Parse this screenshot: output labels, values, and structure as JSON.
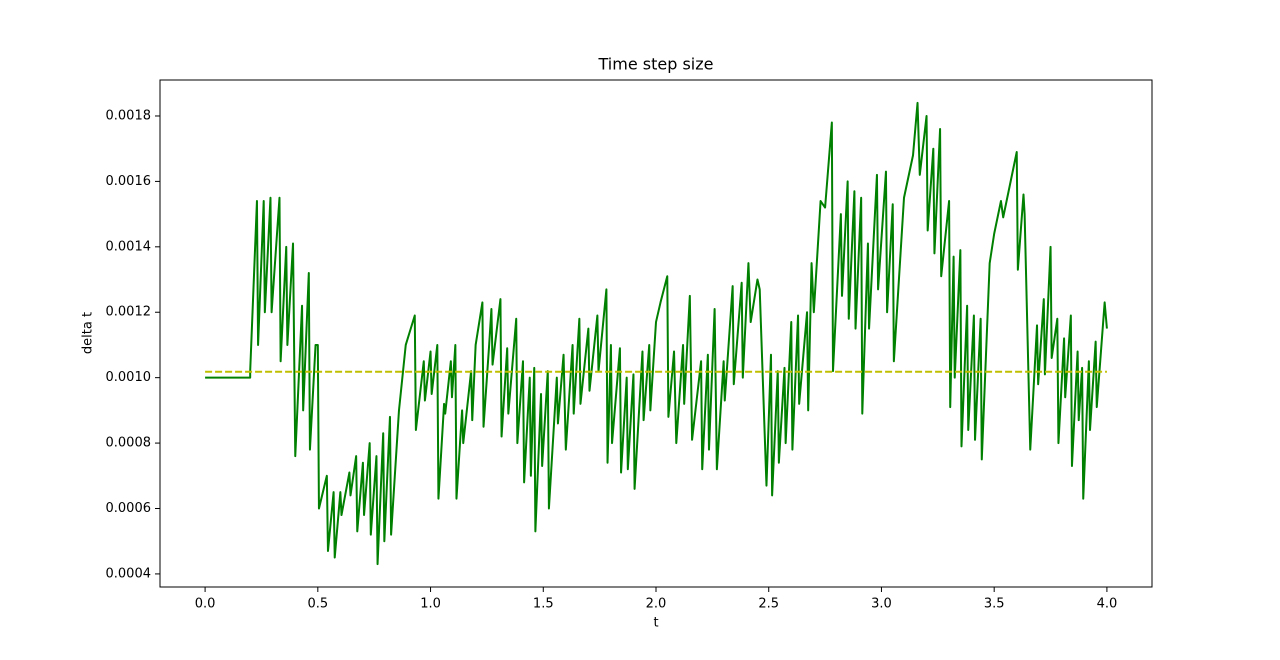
{
  "chart_data": {
    "type": "line",
    "title": "Time step size",
    "xlabel": "t",
    "ylabel": "delta t",
    "xlim": [
      -0.2,
      4.2
    ],
    "ylim": [
      0.00036,
      0.00191
    ],
    "xticks": [
      {
        "value": 0,
        "label": "0.0"
      },
      0.5,
      {
        "value": 1,
        "label": "1.0"
      },
      1.5,
      {
        "value": 2,
        "label": "2.0"
      },
      2.5,
      {
        "value": 3,
        "label": "3.0"
      },
      3.5,
      {
        "value": 4,
        "label": "4.0"
      }
    ],
    "yticks": [
      0.0004,
      0.0006,
      0.0008,
      {
        "value": 0.001,
        "label": "0.0010"
      },
      0.0012,
      0.0014,
      0.0016,
      0.0018
    ],
    "series": [
      {
        "color": "#008000",
        "linestyle": "solid",
        "x": [
          0,
          0.2,
          0.2,
          0.23,
          0.235,
          0.26,
          0.265,
          0.29,
          0.295,
          0.33,
          0.335,
          0.36,
          0.365,
          0.39,
          0.4,
          0.43,
          0.435,
          0.46,
          0.465,
          0.49,
          0.5,
          0.505,
          0.54,
          0.545,
          0.57,
          0.575,
          0.6,
          0.605,
          0.64,
          0.645,
          0.67,
          0.675,
          0.7,
          0.705,
          0.73,
          0.735,
          0.76,
          0.765,
          0.79,
          0.795,
          0.82,
          0.825,
          0.86,
          0.89,
          0.93,
          0.935,
          0.97,
          0.975,
          1.0,
          1.005,
          1.03,
          1.035,
          1.06,
          1.065,
          1.09,
          1.095,
          1.11,
          1.115,
          1.14,
          1.145,
          1.18,
          1.185,
          1.2,
          1.23,
          1.235,
          1.26,
          1.27,
          1.275,
          1.31,
          1.315,
          1.34,
          1.345,
          1.38,
          1.385,
          1.41,
          1.415,
          1.44,
          1.445,
          1.46,
          1.465,
          1.49,
          1.495,
          1.52,
          1.525,
          1.56,
          1.565,
          1.59,
          1.6,
          1.63,
          1.635,
          1.66,
          1.665,
          1.7,
          1.705,
          1.74,
          1.745,
          1.78,
          1.785,
          1.8,
          1.805,
          1.84,
          1.845,
          1.87,
          1.875,
          1.9,
          1.905,
          1.94,
          1.945,
          1.97,
          1.975,
          2.0,
          2.02,
          2.05,
          2.055,
          2.08,
          2.09,
          2.12,
          2.125,
          2.15,
          2.16,
          2.2,
          2.205,
          2.23,
          2.235,
          2.26,
          2.27,
          2.3,
          2.305,
          2.34,
          2.345,
          2.38,
          2.385,
          2.41,
          2.42,
          2.45,
          2.46,
          2.49,
          2.51,
          2.515,
          2.54,
          2.545,
          2.57,
          2.575,
          2.6,
          2.605,
          2.63,
          2.635,
          2.67,
          2.675,
          2.69,
          2.7,
          2.73,
          2.75,
          2.78,
          2.785,
          2.82,
          2.825,
          2.85,
          2.855,
          2.88,
          2.885,
          2.91,
          2.915,
          2.94,
          2.945,
          2.98,
          2.985,
          3.02,
          3.025,
          3.05,
          3.055,
          3.1,
          3.14,
          3.16,
          3.17,
          3.2,
          3.205,
          3.23,
          3.235,
          3.26,
          3.265,
          3.3,
          3.305,
          3.32,
          3.325,
          3.35,
          3.355,
          3.38,
          3.385,
          3.41,
          3.415,
          3.44,
          3.445,
          3.48,
          3.5,
          3.53,
          3.54,
          3.6,
          3.605,
          3.63,
          3.635,
          3.66,
          3.69,
          3.695,
          3.72,
          3.725,
          3.75,
          3.755,
          3.78,
          3.785,
          3.81,
          3.815,
          3.84,
          3.845,
          3.87,
          3.875,
          3.89,
          3.895,
          3.92,
          3.925,
          3.95,
          3.955,
          3.99,
          4.0
        ],
        "values": [
          0.001,
          0.001,
          0.00102,
          0.00154,
          0.0011,
          0.00154,
          0.0012,
          0.00155,
          0.0012,
          0.00155,
          0.00105,
          0.0014,
          0.0011,
          0.00141,
          0.00076,
          0.00122,
          0.0009,
          0.00132,
          0.00078,
          0.0011,
          0.0011,
          0.0006,
          0.0007,
          0.00047,
          0.00065,
          0.00045,
          0.00065,
          0.00058,
          0.00071,
          0.00064,
          0.00076,
          0.00053,
          0.00074,
          0.00058,
          0.0008,
          0.00052,
          0.00076,
          0.00043,
          0.00083,
          0.0005,
          0.00088,
          0.00052,
          0.0009,
          0.0011,
          0.00119,
          0.00084,
          0.00105,
          0.00093,
          0.00108,
          0.00095,
          0.0011,
          0.00063,
          0.00092,
          0.00089,
          0.00105,
          0.00094,
          0.0011,
          0.00063,
          0.0009,
          0.0008,
          0.00102,
          0.00087,
          0.0011,
          0.00123,
          0.00085,
          0.0011,
          0.00121,
          0.00104,
          0.00124,
          0.00082,
          0.00109,
          0.00089,
          0.00118,
          0.0008,
          0.00105,
          0.00068,
          0.001,
          0.0007,
          0.00103,
          0.00053,
          0.00095,
          0.00073,
          0.00102,
          0.0006,
          0.001,
          0.00086,
          0.00107,
          0.00078,
          0.0011,
          0.00089,
          0.00118,
          0.00092,
          0.00115,
          0.00096,
          0.00119,
          0.00102,
          0.00127,
          0.00074,
          0.0011,
          0.0008,
          0.00109,
          0.00071,
          0.001,
          0.00072,
          0.00101,
          0.00066,
          0.00108,
          0.00087,
          0.0011,
          0.0009,
          0.00117,
          0.00123,
          0.00131,
          0.00088,
          0.00108,
          0.0008,
          0.0011,
          0.00092,
          0.00125,
          0.00081,
          0.00105,
          0.00072,
          0.00107,
          0.00078,
          0.00121,
          0.00072,
          0.00105,
          0.00093,
          0.00128,
          0.00098,
          0.00129,
          0.001,
          0.00135,
          0.00117,
          0.0013,
          0.00127,
          0.00067,
          0.00107,
          0.00064,
          0.00102,
          0.00074,
          0.00103,
          0.0008,
          0.00117,
          0.00078,
          0.00119,
          0.00092,
          0.0012,
          0.0009,
          0.00135,
          0.0012,
          0.00154,
          0.00152,
          0.00178,
          0.00102,
          0.0015,
          0.00125,
          0.0016,
          0.00118,
          0.00157,
          0.00115,
          0.00155,
          0.00089,
          0.00141,
          0.00115,
          0.00162,
          0.00127,
          0.00163,
          0.0012,
          0.00153,
          0.00105,
          0.00155,
          0.00168,
          0.00184,
          0.00162,
          0.0018,
          0.00145,
          0.0017,
          0.00138,
          0.00176,
          0.00131,
          0.00154,
          0.00091,
          0.00137,
          0.001,
          0.00139,
          0.00079,
          0.00122,
          0.00084,
          0.00119,
          0.00081,
          0.00118,
          0.00075,
          0.00135,
          0.00144,
          0.00154,
          0.00149,
          0.00169,
          0.00133,
          0.00156,
          0.0015,
          0.00078,
          0.00116,
          0.00098,
          0.00124,
          0.00101,
          0.0014,
          0.00106,
          0.00118,
          0.0008,
          0.00112,
          0.00094,
          0.00119,
          0.00073,
          0.00108,
          0.00087,
          0.00103,
          0.00063,
          0.00105,
          0.00084,
          0.00111,
          0.00091,
          0.00123,
          0.00115
        ]
      },
      {
        "color": "#bfbf00",
        "linestyle": "dashed",
        "x": [
          0,
          4
        ],
        "values": [
          0.001018,
          0.001018
        ]
      }
    ]
  }
}
